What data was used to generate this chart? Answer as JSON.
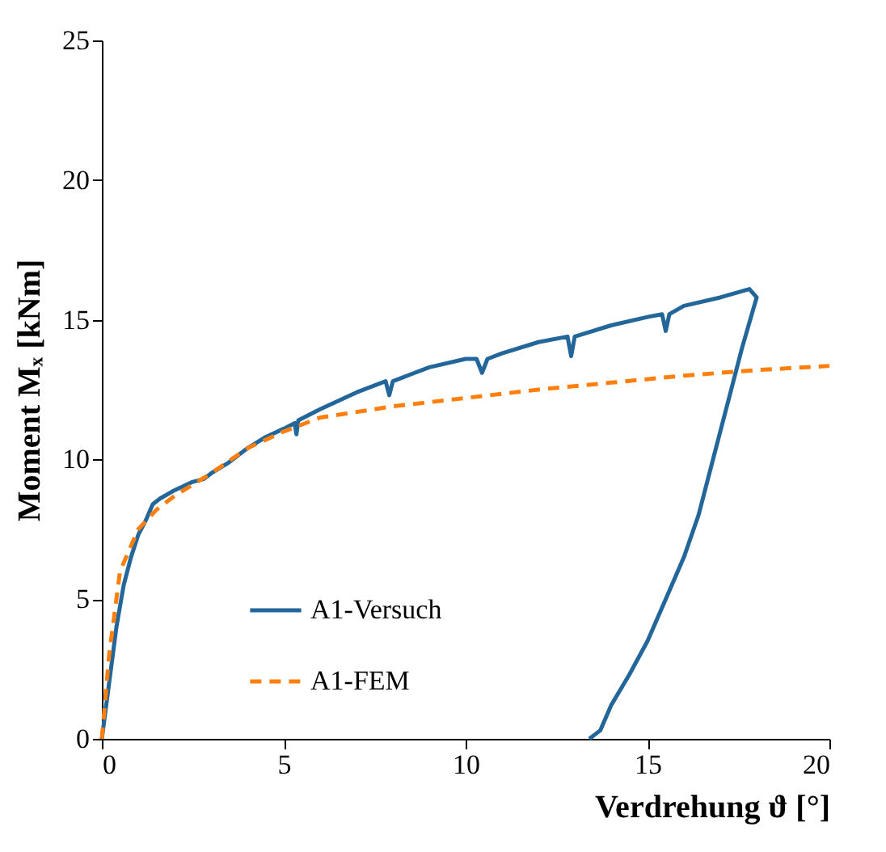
{
  "chart_data": {
    "type": "line",
    "xlabel": "Verdrehung ϑ [°]",
    "ylabel": "Moment Mₓ [kNm]",
    "xlim": [
      0,
      20
    ],
    "ylim": [
      0,
      25
    ],
    "xticks": [
      0,
      5,
      10,
      15,
      20
    ],
    "yticks": [
      0,
      5,
      10,
      15,
      20,
      25
    ],
    "grid": false,
    "legend": "bottom left",
    "series": [
      {
        "name": "A1-Versuch",
        "color": "#22669a",
        "line_style": "solid",
        "x": [
          0,
          0.2,
          0.4,
          0.6,
          0.8,
          1.0,
          1.2,
          1.4,
          1.6,
          2.0,
          2.5,
          2.8,
          3,
          3.5,
          4,
          4.5,
          5,
          5.3,
          5.35,
          5.4,
          6,
          7,
          7.8,
          7.9,
          8.0,
          9,
          10,
          10.3,
          10.45,
          10.6,
          11,
          12,
          12.8,
          12.9,
          13.0,
          14,
          15,
          15.4,
          15.5,
          15.6,
          16,
          17,
          17.8,
          18.0,
          17.6,
          17.2,
          16.8,
          16.4,
          16,
          15.5,
          15,
          14.5,
          14,
          13.7,
          13.4
        ],
        "values": [
          0,
          2,
          4,
          5.5,
          6.5,
          7.3,
          7.8,
          8.4,
          8.6,
          8.9,
          9.2,
          9.3,
          9.5,
          9.9,
          10.4,
          10.8,
          11.1,
          11.3,
          10.9,
          11.4,
          11.8,
          12.4,
          12.8,
          12.3,
          12.8,
          13.3,
          13.6,
          13.6,
          13.1,
          13.6,
          13.8,
          14.2,
          14.4,
          13.7,
          14.4,
          14.8,
          15.1,
          15.2,
          14.6,
          15.2,
          15.5,
          15.8,
          16.1,
          15.8,
          14,
          12,
          10,
          8,
          6.5,
          5,
          3.5,
          2.3,
          1.2,
          0.3,
          0
        ]
      },
      {
        "name": "A1-FEM",
        "color": "#ff7f0e",
        "line_style": "dashed",
        "x": [
          0,
          0.2,
          0.5,
          1,
          1.5,
          2,
          3,
          4,
          5,
          6,
          8,
          10,
          12,
          14,
          16,
          18,
          20
        ],
        "values": [
          0,
          3,
          6,
          7.5,
          8.2,
          8.7,
          9.5,
          10.4,
          11,
          11.5,
          11.9,
          12.2,
          12.5,
          12.75,
          13,
          13.2,
          13.35
        ]
      }
    ]
  }
}
